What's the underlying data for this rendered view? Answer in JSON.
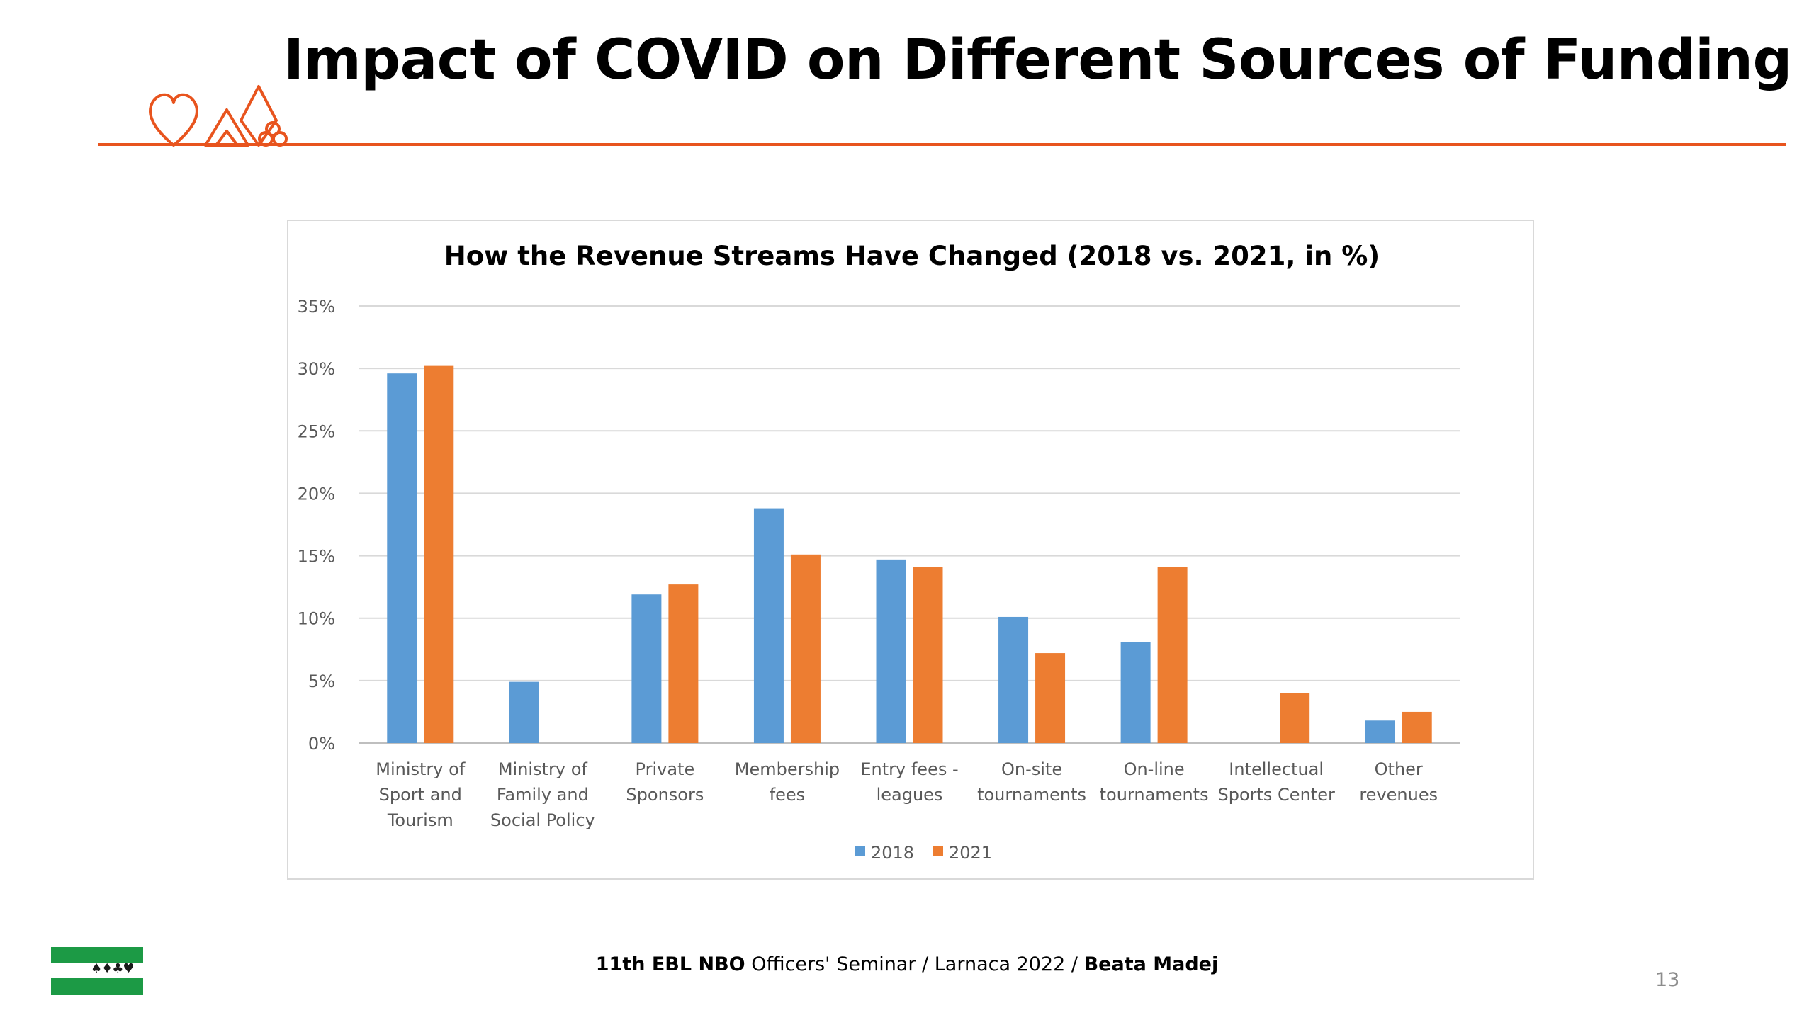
{
  "slide": {
    "title": "Impact of COVID on Different Sources of Funding",
    "footer_regular": "11th EBL NBO Officers' Seminar / Larnaca 2022 / ",
    "footer_bold_prefix": "11th EBL NBO",
    "footer_author": "Beata Madej",
    "page_number": "13",
    "accent_color": "#e8541e",
    "logo_suits": "♠♦♣♥"
  },
  "chart_data": {
    "type": "bar",
    "title": "How the Revenue Streams Have Changed (2018 vs. 2021, in %)",
    "xlabel": "",
    "ylabel": "",
    "ylim": [
      0,
      35
    ],
    "yticks": [
      "0%",
      "5%",
      "10%",
      "15%",
      "20%",
      "25%",
      "30%",
      "35%"
    ],
    "grid": true,
    "legend_position": "bottom",
    "categories": [
      [
        "Ministry of",
        "Sport and",
        "Tourism"
      ],
      [
        "Ministry of",
        "Family and",
        "Social Policy"
      ],
      [
        "Private",
        "Sponsors"
      ],
      [
        "Membership",
        "fees"
      ],
      [
        "Entry fees -",
        "leagues"
      ],
      [
        "On-site",
        "tournaments"
      ],
      [
        "On-line",
        "tournaments"
      ],
      [
        "Intellectual",
        "Sports Center"
      ],
      [
        "Other",
        "revenues"
      ]
    ],
    "series": [
      {
        "name": "2018",
        "color": "#5b9bd5",
        "values": [
          29.6,
          4.9,
          11.9,
          18.8,
          14.7,
          10.1,
          8.1,
          0,
          1.8
        ]
      },
      {
        "name": "2021",
        "color": "#ed7d31",
        "values": [
          30.2,
          0,
          12.7,
          15.1,
          14.1,
          7.2,
          14.1,
          4.0,
          2.5
        ]
      }
    ]
  }
}
